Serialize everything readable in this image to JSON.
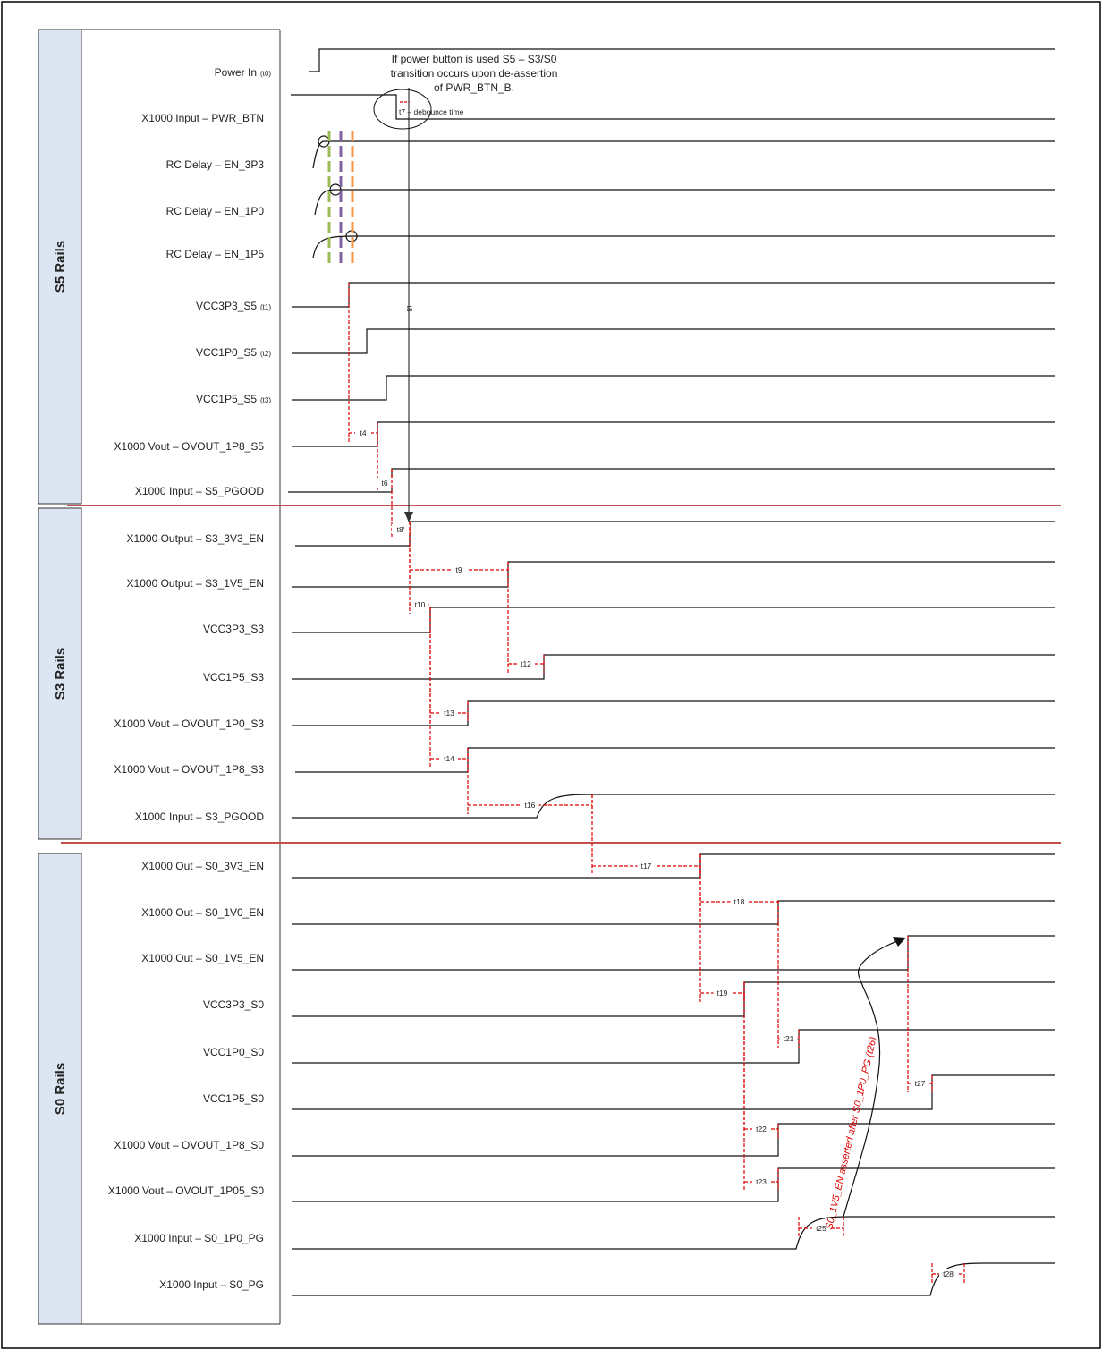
{
  "rails": [
    {
      "id": "s5",
      "label": "S5 Rails"
    },
    {
      "id": "s3",
      "label": "S3 Rails"
    },
    {
      "id": "s0",
      "label": "S0 Rails"
    }
  ],
  "signals": [
    {
      "label": "Power In",
      "sub": "(t0)"
    },
    {
      "label": "X1000 Input – PWR_BTN",
      "sub": ""
    },
    {
      "label": "RC Delay – EN_3P3",
      "sub": ""
    },
    {
      "label": "RC Delay – EN_1P0",
      "sub": ""
    },
    {
      "label": "RC Delay – EN_1P5",
      "sub": ""
    },
    {
      "label": "VCC3P3_S5",
      "sub": "(t1)"
    },
    {
      "label": "VCC1P0_S5",
      "sub": "(t2)"
    },
    {
      "label": "VCC1P5_S5",
      "sub": "(t3)"
    },
    {
      "label": "X1000 Vout – OVOUT_1P8_S5",
      "sub": ""
    },
    {
      "label": "X1000 Input – S5_PGOOD",
      "sub": ""
    },
    {
      "label": "X1000 Output – S3_3V3_EN",
      "sub": ""
    },
    {
      "label": "X1000 Output – S3_1V5_EN",
      "sub": ""
    },
    {
      "label": "VCC3P3_S3",
      "sub": ""
    },
    {
      "label": "VCC1P5_S3",
      "sub": ""
    },
    {
      "label": "X1000 Vout – OVOUT_1P0_S3",
      "sub": ""
    },
    {
      "label": "X1000 Vout – OVOUT_1P8_S3",
      "sub": ""
    },
    {
      "label": "X1000 Input – S3_PGOOD",
      "sub": ""
    },
    {
      "label": "X1000 Out – S0_3V3_EN",
      "sub": ""
    },
    {
      "label": "X1000 Out – S0_1V0_EN",
      "sub": ""
    },
    {
      "label": "X1000 Out – S0_1V5_EN",
      "sub": ""
    },
    {
      "label": "VCC3P3_S0",
      "sub": ""
    },
    {
      "label": "VCC1P0_S0",
      "sub": ""
    },
    {
      "label": "VCC1P5_S0",
      "sub": ""
    },
    {
      "label": "X1000 Vout – OVOUT_1P8_S0",
      "sub": ""
    },
    {
      "label": "X1000 Vout – OVOUT_1P05_S0",
      "sub": ""
    },
    {
      "label": "X1000 Input – S0_1P0_PG",
      "sub": ""
    },
    {
      "label": "X1000 Input – S0_PG",
      "sub": ""
    }
  ],
  "timings": [
    "t4",
    "t6",
    "t8'",
    "t9",
    "t10",
    "t12",
    "t13",
    "t14",
    "t16",
    "t17",
    "t18",
    "t19",
    "t21",
    "t22",
    "t23",
    "t25",
    "t27",
    "t28"
  ],
  "annotations": {
    "power_button_note": [
      "If power button is used S5 – S3/S0",
      "transition occurs upon de-assertion",
      "of PWR_BTN_B."
    ],
    "debounce": "t7 – debounce time",
    "t8": "t8",
    "s0_1v5_note": "S0_1V5_EN asserted after S0_1P0_PG (t26)"
  },
  "colors": {
    "separator": "#c0504d",
    "timing": "#e00000",
    "rail_fill": "#dce6f2",
    "dash_green": "#9bbb59",
    "dash_purple": "#8064a2",
    "dash_gray": "#a6a6a6",
    "dash_orange": "#f79646"
  }
}
